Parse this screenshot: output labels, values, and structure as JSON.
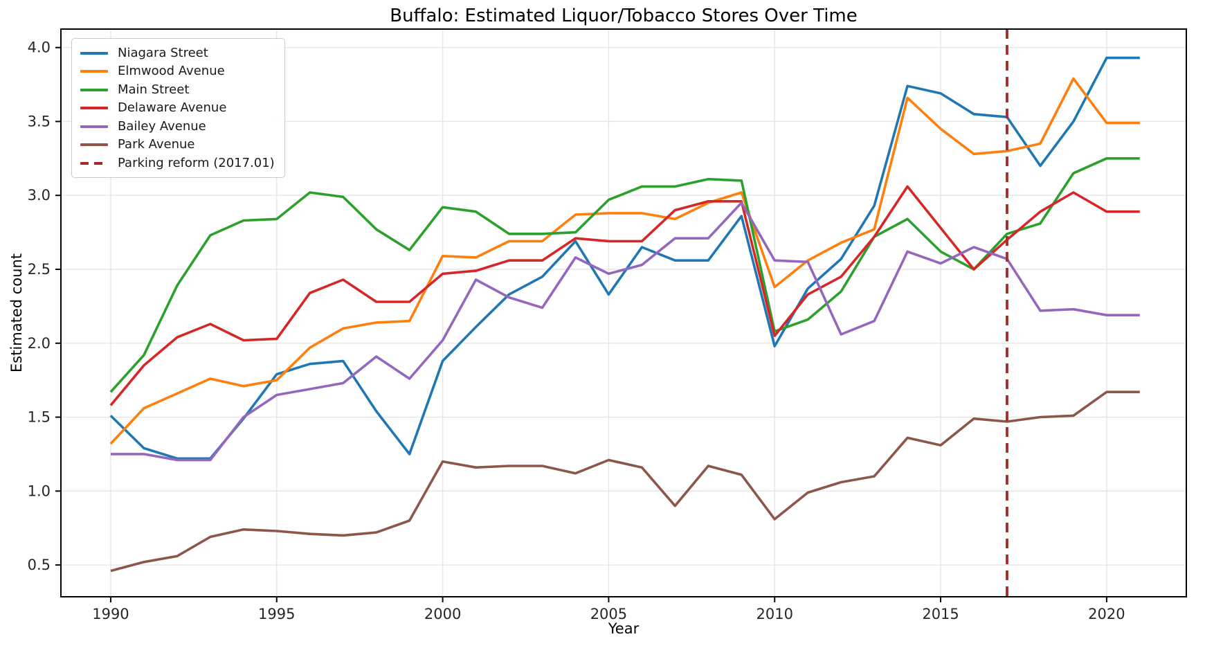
{
  "chart_data": {
    "type": "line",
    "title": "Buffalo: Estimated Liquor/Tobacco Stores Over Time",
    "xlabel": "Year",
    "ylabel": "Estimated count",
    "x": [
      1990,
      1991,
      1992,
      1993,
      1994,
      1995,
      1996,
      1997,
      1998,
      1999,
      2000,
      2001,
      2002,
      2003,
      2004,
      2005,
      2006,
      2007,
      2008,
      2009,
      2010,
      2011,
      2012,
      2013,
      2014,
      2015,
      2016,
      2017,
      2018,
      2019,
      2020,
      2021
    ],
    "x_ticks": [
      1990,
      1995,
      2000,
      2005,
      2010,
      2015,
      2020
    ],
    "y_ticks": [
      0.5,
      1.0,
      1.5,
      2.0,
      2.5,
      3.0,
      3.5,
      4.0
    ],
    "xlim": [
      1988.5,
      2022.4
    ],
    "ylim": [
      0.285,
      4.125
    ],
    "grid": true,
    "legend_position": "upper left",
    "series": [
      {
        "name": "Niagara Street",
        "color": "#1f77b4",
        "values": [
          1.51,
          1.29,
          1.22,
          1.22,
          1.49,
          1.79,
          1.86,
          1.88,
          1.54,
          1.25,
          1.88,
          2.11,
          2.33,
          2.45,
          2.69,
          2.33,
          2.65,
          2.56,
          2.56,
          2.86,
          1.98,
          2.37,
          2.57,
          2.93,
          3.74,
          3.69,
          3.55,
          3.53,
          3.2,
          3.5,
          3.93,
          3.93
        ]
      },
      {
        "name": "Elmwood Avenue",
        "color": "#ff7f0e",
        "values": [
          1.32,
          1.56,
          1.66,
          1.76,
          1.71,
          1.75,
          1.97,
          2.1,
          2.14,
          2.15,
          2.59,
          2.58,
          2.69,
          2.69,
          2.87,
          2.88,
          2.88,
          2.84,
          2.95,
          3.02,
          2.38,
          2.56,
          2.68,
          2.77,
          3.66,
          3.45,
          3.28,
          3.3,
          3.35,
          3.79,
          3.49,
          3.49
        ]
      },
      {
        "name": "Main Street",
        "color": "#2ca02c",
        "values": [
          1.67,
          1.92,
          2.39,
          2.73,
          2.83,
          2.84,
          3.02,
          2.99,
          2.77,
          2.63,
          2.92,
          2.89,
          2.74,
          2.74,
          2.75,
          2.97,
          3.06,
          3.06,
          3.11,
          3.1,
          2.08,
          2.16,
          2.35,
          2.72,
          2.84,
          2.62,
          2.5,
          2.74,
          2.81,
          3.15,
          3.25,
          3.25
        ]
      },
      {
        "name": "Delaware Avenue",
        "color": "#d62728",
        "values": [
          1.58,
          1.85,
          2.04,
          2.13,
          2.02,
          2.03,
          2.34,
          2.43,
          2.28,
          2.28,
          2.47,
          2.49,
          2.56,
          2.56,
          2.71,
          2.69,
          2.69,
          2.9,
          2.96,
          2.96,
          2.05,
          2.33,
          2.45,
          2.72,
          3.06,
          2.78,
          2.5,
          2.7,
          2.89,
          3.02,
          2.89,
          2.89
        ]
      },
      {
        "name": "Bailey Avenue",
        "color": "#9467bd",
        "values": [
          1.25,
          1.25,
          1.21,
          1.21,
          1.5,
          1.65,
          1.69,
          1.73,
          1.91,
          1.76,
          2.02,
          2.43,
          2.31,
          2.24,
          2.58,
          2.47,
          2.53,
          2.71,
          2.71,
          2.95,
          2.56,
          2.55,
          2.06,
          2.15,
          2.62,
          2.54,
          2.65,
          2.57,
          2.22,
          2.23,
          2.19,
          2.19
        ]
      },
      {
        "name": "Park Avenue",
        "color": "#8c564b",
        "values": [
          0.46,
          0.52,
          0.56,
          0.69,
          0.74,
          0.73,
          0.71,
          0.7,
          0.72,
          0.8,
          1.2,
          1.16,
          1.17,
          1.17,
          1.12,
          1.21,
          1.16,
          0.9,
          1.17,
          1.11,
          0.81,
          0.99,
          1.06,
          1.1,
          1.36,
          1.31,
          1.49,
          1.47,
          1.5,
          1.51,
          1.67,
          1.67
        ]
      }
    ],
    "annotation": {
      "label": "Parking reform (2017.01)",
      "x": 2017,
      "color": "#a52a2a",
      "style": "dashed"
    }
  },
  "style_colors": {
    "grid": "#e6e6e6",
    "spine": "#000000",
    "tick_label": "#262626"
  }
}
